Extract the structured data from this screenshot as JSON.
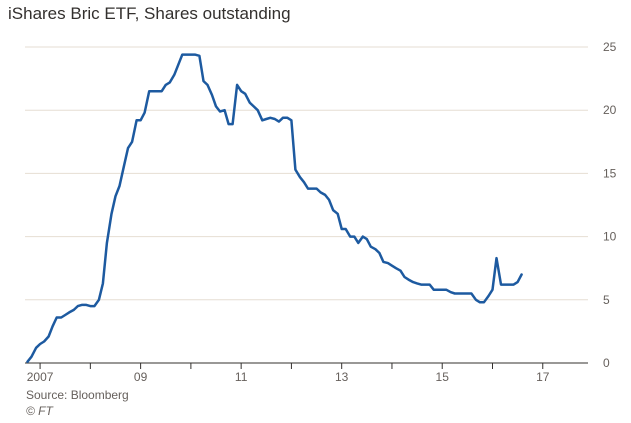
{
  "chart_data": {
    "type": "line",
    "title": "iShares Bric ETF, Shares outstanding",
    "source": "Source: Bloomberg",
    "credit": "© FT",
    "ylim": [
      0,
      25
    ],
    "yticks": [
      0,
      5,
      10,
      15,
      20,
      25
    ],
    "xlim": [
      2006.7,
      2017.9
    ],
    "xticks": [
      {
        "value": 2007,
        "label": "2007"
      },
      {
        "value": 2009,
        "label": "09"
      },
      {
        "value": 2011,
        "label": "11"
      },
      {
        "value": 2013,
        "label": "13"
      },
      {
        "value": 2015,
        "label": "15"
      },
      {
        "value": 2017,
        "label": "17"
      }
    ],
    "grid": "horizontal",
    "color": "#1d5aa0",
    "series": [
      {
        "name": "",
        "points": [
          [
            2006.75,
            0.1
          ],
          [
            2006.83,
            0.5
          ],
          [
            2006.92,
            1.2
          ],
          [
            2007.0,
            1.5
          ],
          [
            2007.08,
            1.7
          ],
          [
            2007.17,
            2.1
          ],
          [
            2007.25,
            2.9
          ],
          [
            2007.33,
            3.6
          ],
          [
            2007.42,
            3.6
          ],
          [
            2007.5,
            3.8
          ],
          [
            2007.58,
            4.0
          ],
          [
            2007.67,
            4.2
          ],
          [
            2007.75,
            4.5
          ],
          [
            2007.83,
            4.6
          ],
          [
            2007.92,
            4.6
          ],
          [
            2008.0,
            4.5
          ],
          [
            2008.08,
            4.5
          ],
          [
            2008.17,
            5.0
          ],
          [
            2008.25,
            6.3
          ],
          [
            2008.33,
            9.5
          ],
          [
            2008.42,
            11.8
          ],
          [
            2008.5,
            13.2
          ],
          [
            2008.58,
            14.0
          ],
          [
            2008.67,
            15.6
          ],
          [
            2008.75,
            17.0
          ],
          [
            2008.83,
            17.5
          ],
          [
            2008.92,
            19.2
          ],
          [
            2009.0,
            19.2
          ],
          [
            2009.08,
            19.8
          ],
          [
            2009.17,
            21.5
          ],
          [
            2009.25,
            21.5
          ],
          [
            2009.33,
            21.5
          ],
          [
            2009.42,
            21.5
          ],
          [
            2009.5,
            22.0
          ],
          [
            2009.58,
            22.2
          ],
          [
            2009.67,
            22.8
          ],
          [
            2009.75,
            23.6
          ],
          [
            2009.83,
            24.4
          ],
          [
            2009.92,
            24.4
          ],
          [
            2010.0,
            24.4
          ],
          [
            2010.08,
            24.4
          ],
          [
            2010.17,
            24.3
          ],
          [
            2010.25,
            22.3
          ],
          [
            2010.33,
            22.0
          ],
          [
            2010.42,
            21.2
          ],
          [
            2010.5,
            20.3
          ],
          [
            2010.58,
            19.9
          ],
          [
            2010.67,
            20.0
          ],
          [
            2010.75,
            18.9
          ],
          [
            2010.83,
            18.9
          ],
          [
            2010.92,
            22.0
          ],
          [
            2011.0,
            21.5
          ],
          [
            2011.08,
            21.3
          ],
          [
            2011.17,
            20.6
          ],
          [
            2011.25,
            20.3
          ],
          [
            2011.33,
            20.0
          ],
          [
            2011.42,
            19.2
          ],
          [
            2011.5,
            19.3
          ],
          [
            2011.58,
            19.4
          ],
          [
            2011.67,
            19.3
          ],
          [
            2011.75,
            19.1
          ],
          [
            2011.83,
            19.4
          ],
          [
            2011.92,
            19.4
          ],
          [
            2012.0,
            19.2
          ],
          [
            2012.08,
            15.3
          ],
          [
            2012.17,
            14.7
          ],
          [
            2012.25,
            14.3
          ],
          [
            2012.33,
            13.8
          ],
          [
            2012.42,
            13.8
          ],
          [
            2012.5,
            13.8
          ],
          [
            2012.58,
            13.5
          ],
          [
            2012.67,
            13.3
          ],
          [
            2012.75,
            12.9
          ],
          [
            2012.83,
            12.1
          ],
          [
            2012.92,
            11.8
          ],
          [
            2013.0,
            10.6
          ],
          [
            2013.08,
            10.6
          ],
          [
            2013.17,
            10.0
          ],
          [
            2013.25,
            10.0
          ],
          [
            2013.33,
            9.5
          ],
          [
            2013.42,
            10.0
          ],
          [
            2013.5,
            9.8
          ],
          [
            2013.58,
            9.2
          ],
          [
            2013.67,
            9.0
          ],
          [
            2013.75,
            8.7
          ],
          [
            2013.83,
            8.0
          ],
          [
            2013.92,
            7.9
          ],
          [
            2014.0,
            7.7
          ],
          [
            2014.08,
            7.5
          ],
          [
            2014.17,
            7.3
          ],
          [
            2014.25,
            6.8
          ],
          [
            2014.33,
            6.6
          ],
          [
            2014.42,
            6.4
          ],
          [
            2014.5,
            6.3
          ],
          [
            2014.58,
            6.2
          ],
          [
            2014.67,
            6.2
          ],
          [
            2014.75,
            6.2
          ],
          [
            2014.83,
            5.8
          ],
          [
            2014.92,
            5.8
          ],
          [
            2015.0,
            5.8
          ],
          [
            2015.08,
            5.8
          ],
          [
            2015.17,
            5.6
          ],
          [
            2015.25,
            5.5
          ],
          [
            2015.33,
            5.5
          ],
          [
            2015.42,
            5.5
          ],
          [
            2015.5,
            5.5
          ],
          [
            2015.58,
            5.5
          ],
          [
            2015.67,
            5.0
          ],
          [
            2015.75,
            4.8
          ],
          [
            2015.83,
            4.8
          ],
          [
            2015.92,
            5.3
          ],
          [
            2016.0,
            5.8
          ],
          [
            2016.08,
            8.3
          ],
          [
            2016.17,
            6.2
          ],
          [
            2016.25,
            6.2
          ],
          [
            2016.33,
            6.2
          ],
          [
            2016.42,
            6.2
          ],
          [
            2016.5,
            6.4
          ],
          [
            2016.58,
            7.0
          ]
        ]
      }
    ]
  }
}
